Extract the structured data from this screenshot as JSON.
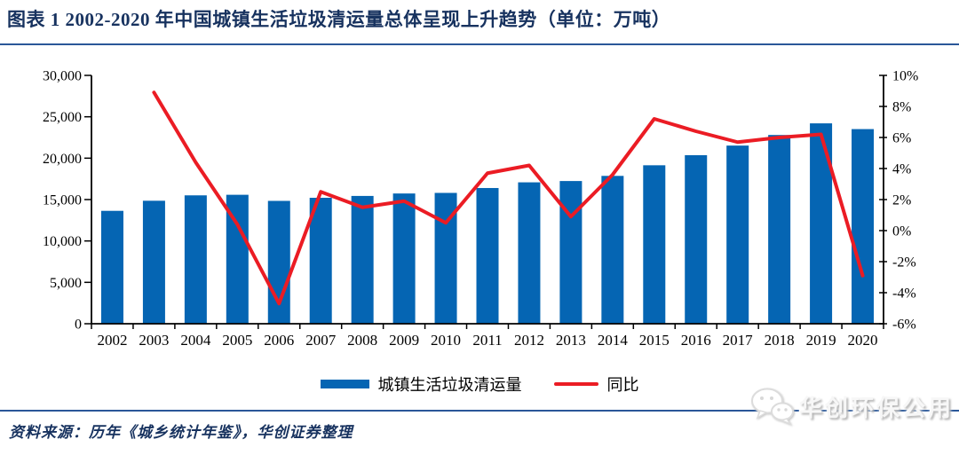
{
  "page": {
    "title": "图表 1  2002-2020 年中国城镇生活垃圾清运量总体呈现上升趋势（单位：万吨）",
    "source": "资料来源：历年《城乡统计年鉴》，华创证券整理",
    "watermark": "华创环保公用"
  },
  "colors": {
    "bar": "#0565B3",
    "line": "#EB1C24",
    "text_navy": "#17325F",
    "rule": "#2A5798",
    "axis": "#000000"
  },
  "chart_data": {
    "type": "bar",
    "subtype": "bar+line combo, dual axis",
    "title": "2002-2020 年中国城镇生活垃圾清运量总体呈现上升趋势",
    "unit": "万吨",
    "grid": false,
    "legend_position": "bottom",
    "categories": [
      "2002",
      "2003",
      "2004",
      "2005",
      "2006",
      "2007",
      "2008",
      "2009",
      "2010",
      "2011",
      "2012",
      "2013",
      "2014",
      "2015",
      "2016",
      "2017",
      "2018",
      "2019",
      "2020"
    ],
    "series": [
      {
        "name": "城镇生活垃圾清运量",
        "kind": "bar",
        "axis": "left",
        "values": [
          13638,
          14857,
          15509,
          15577,
          14841,
          15215,
          15438,
          15734,
          15805,
          16395,
          17081,
          17239,
          17860,
          19142,
          20362,
          21521,
          22802,
          24206,
          23512
        ]
      },
      {
        "name": "同比",
        "kind": "line",
        "axis": "right",
        "values": [
          null,
          8.9,
          4.4,
          0.4,
          -4.7,
          2.5,
          1.5,
          1.9,
          0.5,
          3.7,
          4.2,
          0.9,
          3.6,
          7.2,
          6.4,
          5.7,
          6.0,
          6.2,
          -2.9
        ]
      }
    ],
    "left_axis": {
      "min": 0,
      "max": 30000,
      "tick_values": [
        0,
        5000,
        10000,
        15000,
        20000,
        25000,
        30000
      ],
      "tick_labels": [
        "0",
        "5,000",
        "10,000",
        "15,000",
        "20,000",
        "25,000",
        "30,000"
      ]
    },
    "right_axis": {
      "min": -6,
      "max": 10,
      "tick_values": [
        -6,
        -4,
        -2,
        0,
        2,
        4,
        6,
        8,
        10
      ],
      "tick_labels": [
        "-6%",
        "-4%",
        "-2%",
        "0%",
        "2%",
        "4%",
        "6%",
        "8%",
        "10%"
      ]
    }
  }
}
